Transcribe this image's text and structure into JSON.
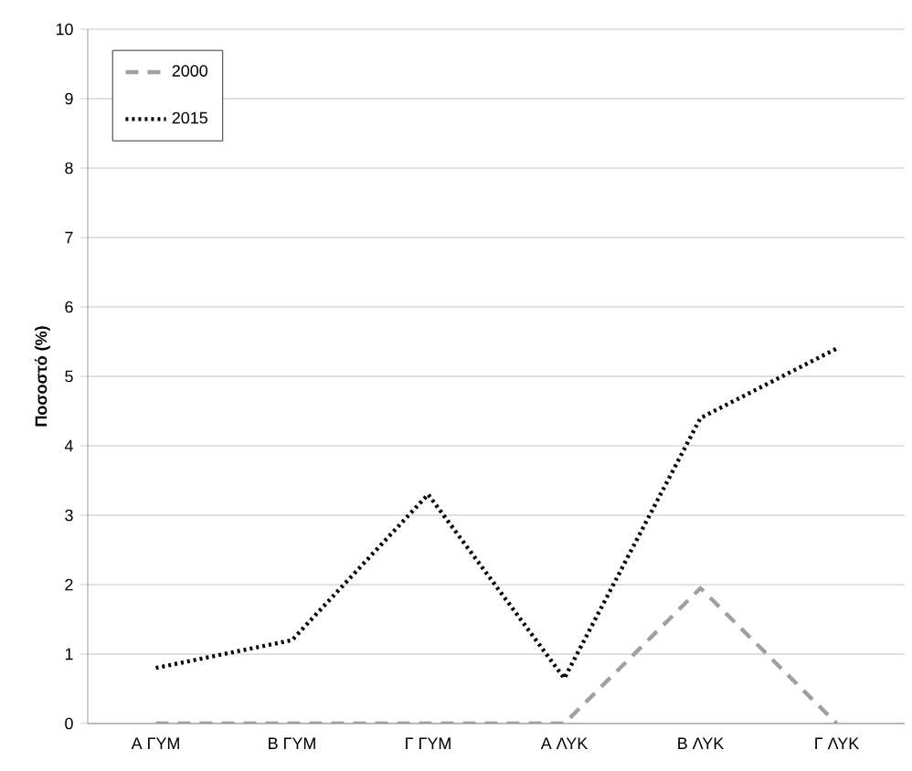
{
  "chart_data": {
    "type": "line",
    "ylabel": "Ποσοστό (%)",
    "categories": [
      "Α ΓΥΜ",
      "Β ΓΥΜ",
      "Γ ΓΥΜ",
      "Α ΛΥΚ",
      "Β ΛΥΚ",
      "Γ ΛΥΚ"
    ],
    "series": [
      {
        "name": "2000",
        "color": "#a0a0a0",
        "line_style": "dashed",
        "values": [
          0,
          0,
          0,
          0,
          1.95,
          0
        ]
      },
      {
        "name": "2015",
        "color": "#000000",
        "line_style": "dotted",
        "values": [
          0.8,
          1.2,
          3.3,
          0.65,
          4.4,
          5.4
        ]
      }
    ],
    "ylim": [
      0,
      10
    ],
    "yticks": [
      0,
      1,
      2,
      3,
      4,
      5,
      6,
      7,
      8,
      9,
      10
    ],
    "grid": "y",
    "legend": "top left"
  }
}
